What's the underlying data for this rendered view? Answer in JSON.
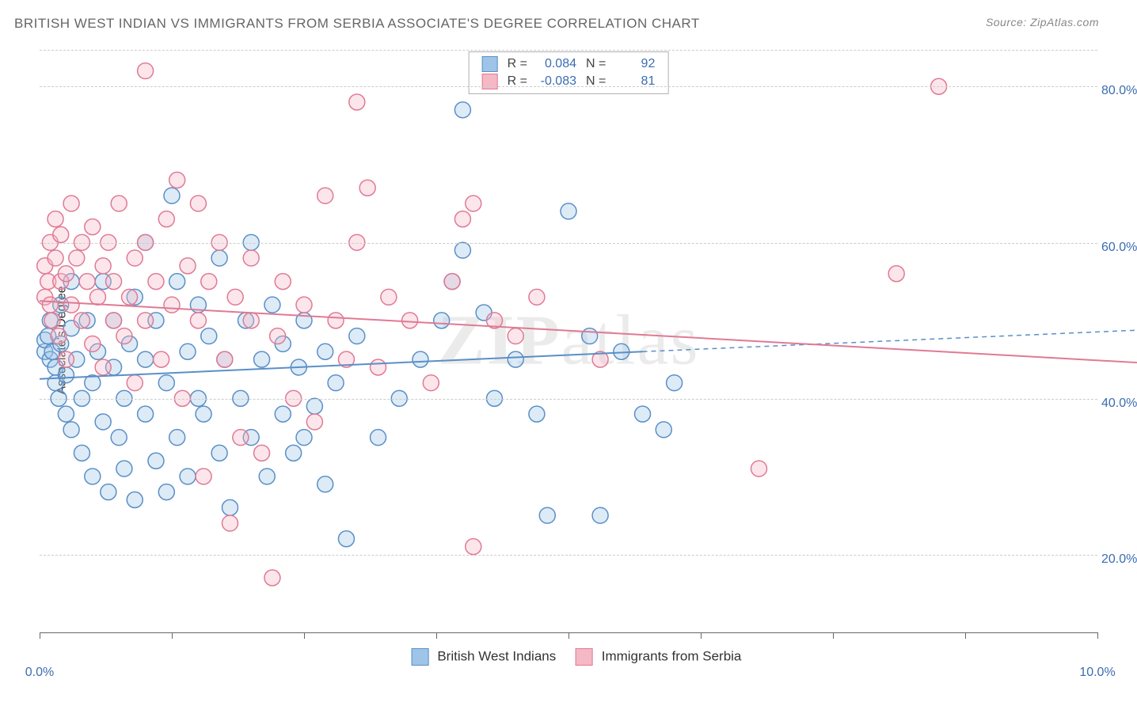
{
  "title": "BRITISH WEST INDIAN VS IMMIGRANTS FROM SERBIA ASSOCIATE'S DEGREE CORRELATION CHART",
  "source_label": "Source: ZipAtlas.com",
  "watermark": "ZIPatlas",
  "chart": {
    "type": "scatter_with_trendlines",
    "background_color": "#ffffff",
    "grid_color": "#cccccc",
    "axis_color": "#666666",
    "tick_label_color": "#3b6db0",
    "y_axis_label": "Associate's Degree",
    "xlim": [
      0.0,
      10.0
    ],
    "ylim": [
      10.0,
      85.0
    ],
    "x_ticks": [
      0.0,
      1.25,
      2.5,
      3.75,
      5.0,
      6.25,
      7.5,
      8.75,
      10.0
    ],
    "x_tick_labels": {
      "0.0": "0.0%",
      "10.0": "10.0%"
    },
    "y_gridlines": [
      20.0,
      40.0,
      60.0,
      80.0
    ],
    "y_tick_labels": [
      "20.0%",
      "40.0%",
      "60.0%",
      "80.0%"
    ],
    "marker_radius": 10,
    "marker_stroke_width": 1.5,
    "marker_fill_opacity": 0.35,
    "trendline_width": 2,
    "label_fontsize": 16,
    "title_fontsize": 17
  },
  "series": [
    {
      "id": "bwi",
      "label": "British West Indians",
      "color_fill": "#9ec5e8",
      "color_stroke": "#5a8fc7",
      "R": "0.084",
      "N": "92",
      "trend": {
        "x1": 0.0,
        "y1": 42.5,
        "x2": 5.7,
        "y2": 46.0,
        "x2_ext": 10.8,
        "y2_ext": 49.0
      },
      "points": [
        [
          0.05,
          46
        ],
        [
          0.05,
          47.5
        ],
        [
          0.08,
          48
        ],
        [
          0.1,
          45
        ],
        [
          0.1,
          50
        ],
        [
          0.12,
          46
        ],
        [
          0.15,
          44
        ],
        [
          0.15,
          42
        ],
        [
          0.18,
          40
        ],
        [
          0.2,
          47
        ],
        [
          0.2,
          52
        ],
        [
          0.25,
          38
        ],
        [
          0.25,
          43
        ],
        [
          0.3,
          36
        ],
        [
          0.3,
          49
        ],
        [
          0.3,
          55
        ],
        [
          0.35,
          45
        ],
        [
          0.4,
          40
        ],
        [
          0.4,
          33
        ],
        [
          0.45,
          50
        ],
        [
          0.5,
          30
        ],
        [
          0.5,
          42
        ],
        [
          0.55,
          46
        ],
        [
          0.6,
          55
        ],
        [
          0.6,
          37
        ],
        [
          0.65,
          28
        ],
        [
          0.7,
          50
        ],
        [
          0.7,
          44
        ],
        [
          0.75,
          35
        ],
        [
          0.8,
          40
        ],
        [
          0.8,
          31
        ],
        [
          0.85,
          47
        ],
        [
          0.9,
          53
        ],
        [
          0.9,
          27
        ],
        [
          1.0,
          45
        ],
        [
          1.0,
          38
        ],
        [
          1.0,
          60
        ],
        [
          1.1,
          32
        ],
        [
          1.1,
          50
        ],
        [
          1.2,
          28
        ],
        [
          1.2,
          42
        ],
        [
          1.25,
          66
        ],
        [
          1.3,
          35
        ],
        [
          1.3,
          55
        ],
        [
          1.4,
          46
        ],
        [
          1.4,
          30
        ],
        [
          1.5,
          52
        ],
        [
          1.5,
          40
        ],
        [
          1.55,
          38
        ],
        [
          1.6,
          48
        ],
        [
          1.7,
          58
        ],
        [
          1.7,
          33
        ],
        [
          1.75,
          45
        ],
        [
          1.8,
          26
        ],
        [
          1.9,
          40
        ],
        [
          1.95,
          50
        ],
        [
          2.0,
          35
        ],
        [
          2.0,
          60
        ],
        [
          2.1,
          45
        ],
        [
          2.15,
          30
        ],
        [
          2.2,
          52
        ],
        [
          2.3,
          38
        ],
        [
          2.3,
          47
        ],
        [
          2.4,
          33
        ],
        [
          2.45,
          44
        ],
        [
          2.5,
          50
        ],
        [
          2.5,
          35
        ],
        [
          2.6,
          39
        ],
        [
          2.7,
          46
        ],
        [
          2.7,
          29
        ],
        [
          2.8,
          42
        ],
        [
          2.9,
          22
        ],
        [
          3.0,
          48
        ],
        [
          3.2,
          35
        ],
        [
          3.4,
          40
        ],
        [
          3.6,
          45
        ],
        [
          3.8,
          50
        ],
        [
          3.9,
          55
        ],
        [
          4.0,
          77
        ],
        [
          4.0,
          59
        ],
        [
          4.2,
          51
        ],
        [
          4.3,
          40
        ],
        [
          4.5,
          45
        ],
        [
          4.7,
          38
        ],
        [
          4.8,
          25
        ],
        [
          5.0,
          64
        ],
        [
          5.2,
          48
        ],
        [
          5.5,
          46
        ],
        [
          5.7,
          38
        ],
        [
          5.9,
          36
        ],
        [
          5.3,
          25
        ],
        [
          6.0,
          42
        ]
      ]
    },
    {
      "id": "serbia",
      "label": "Immigrants from Serbia",
      "color_fill": "#f5b8c5",
      "color_stroke": "#e07a94",
      "R": "-0.083",
      "N": "81",
      "trend": {
        "x1": 0.0,
        "y1": 52.5,
        "x2": 10.5,
        "y2": 44.5
      },
      "points": [
        [
          0.05,
          53
        ],
        [
          0.05,
          57
        ],
        [
          0.08,
          55
        ],
        [
          0.1,
          60
        ],
        [
          0.1,
          52
        ],
        [
          0.12,
          50
        ],
        [
          0.15,
          58
        ],
        [
          0.15,
          63
        ],
        [
          0.18,
          48
        ],
        [
          0.2,
          55
        ],
        [
          0.2,
          61
        ],
        [
          0.25,
          45
        ],
        [
          0.25,
          56
        ],
        [
          0.3,
          65
        ],
        [
          0.3,
          52
        ],
        [
          0.35,
          58
        ],
        [
          0.4,
          50
        ],
        [
          0.4,
          60
        ],
        [
          0.45,
          55
        ],
        [
          0.5,
          47
        ],
        [
          0.5,
          62
        ],
        [
          0.55,
          53
        ],
        [
          0.6,
          57
        ],
        [
          0.6,
          44
        ],
        [
          0.65,
          60
        ],
        [
          0.7,
          50
        ],
        [
          0.7,
          55
        ],
        [
          0.75,
          65
        ],
        [
          0.8,
          48
        ],
        [
          0.85,
          53
        ],
        [
          0.9,
          58
        ],
        [
          0.9,
          42
        ],
        [
          1.0,
          60
        ],
        [
          1.0,
          50
        ],
        [
          1.0,
          82
        ],
        [
          1.1,
          55
        ],
        [
          1.15,
          45
        ],
        [
          1.2,
          63
        ],
        [
          1.25,
          52
        ],
        [
          1.3,
          68
        ],
        [
          1.35,
          40
        ],
        [
          1.4,
          57
        ],
        [
          1.5,
          50
        ],
        [
          1.5,
          65
        ],
        [
          1.55,
          30
        ],
        [
          1.6,
          55
        ],
        [
          1.7,
          60
        ],
        [
          1.75,
          45
        ],
        [
          1.8,
          24
        ],
        [
          1.85,
          53
        ],
        [
          1.9,
          35
        ],
        [
          2.0,
          50
        ],
        [
          2.0,
          58
        ],
        [
          2.1,
          33
        ],
        [
          2.2,
          17
        ],
        [
          2.25,
          48
        ],
        [
          2.3,
          55
        ],
        [
          2.4,
          40
        ],
        [
          2.5,
          52
        ],
        [
          2.6,
          37
        ],
        [
          2.7,
          66
        ],
        [
          2.8,
          50
        ],
        [
          2.9,
          45
        ],
        [
          3.0,
          60
        ],
        [
          3.0,
          78
        ],
        [
          3.1,
          67
        ],
        [
          3.2,
          44
        ],
        [
          3.3,
          53
        ],
        [
          3.5,
          50
        ],
        [
          3.7,
          42
        ],
        [
          3.9,
          55
        ],
        [
          4.0,
          63
        ],
        [
          4.1,
          65
        ],
        [
          4.1,
          21
        ],
        [
          4.3,
          50
        ],
        [
          4.5,
          48
        ],
        [
          4.7,
          53
        ],
        [
          5.3,
          45
        ],
        [
          6.8,
          31
        ],
        [
          8.1,
          56
        ],
        [
          8.5,
          80
        ]
      ]
    }
  ],
  "legend_top": {
    "R_label": "R =",
    "N_label": "N ="
  }
}
